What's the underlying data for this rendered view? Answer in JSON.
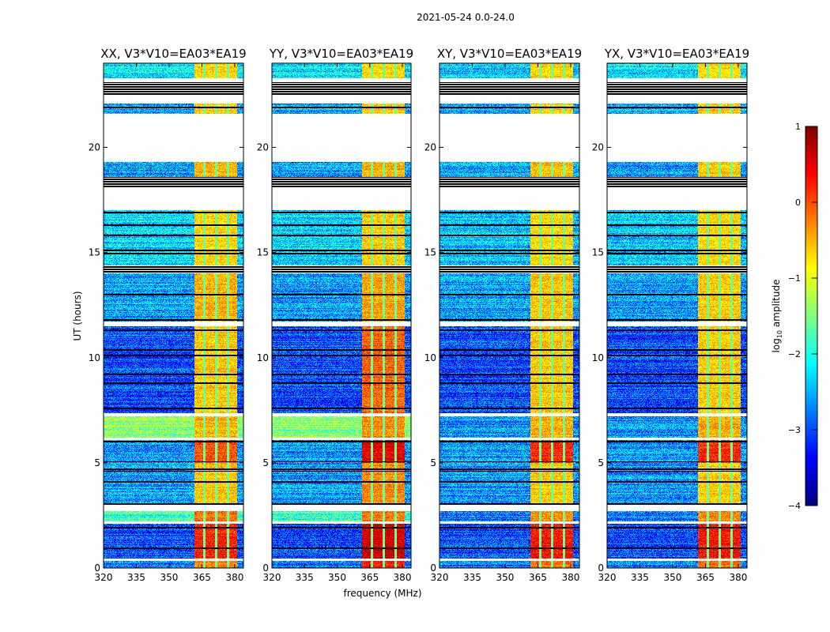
{
  "chart_data": {
    "type": "heatmap",
    "title": "2021-05-24 0.0-24.0",
    "xlabel": "frequency (MHz)",
    "ylabel": "UT (hours)",
    "xlim": [
      320,
      384
    ],
    "ylim": [
      0,
      24
    ],
    "xticks": [
      "320",
      "335",
      "350",
      "365",
      "380"
    ],
    "xtick_values": [
      320,
      335,
      350,
      365,
      380
    ],
    "yticks": [
      "0",
      "5",
      "10",
      "15",
      "20"
    ],
    "ytick_values": [
      0,
      5,
      10,
      15,
      20
    ],
    "panels": [
      {
        "title": "XX, V3*V10=EA03*EA19"
      },
      {
        "title": "YY, V3*V10=EA03*EA19"
      },
      {
        "title": "XY, V3*V10=EA03*EA19"
      },
      {
        "title": "YX, V3*V10=EA03*EA19"
      }
    ],
    "colorbar": {
      "label_main": "log",
      "label_sub": "10",
      "label_tail": " amplitude",
      "colormap": "jet",
      "range": [
        -4,
        1
      ],
      "ticks": [
        "1",
        "0",
        "−1",
        "−2",
        "−3",
        "−4"
      ],
      "tick_values": [
        1,
        0,
        -1,
        -2,
        -3,
        -4
      ]
    },
    "high_band_MHz": [
      361.5,
      381
    ],
    "band_gaps_MHz": [
      366,
      371.5,
      377
    ],
    "segments_hours": [
      {
        "from": 0,
        "to": 0.35,
        "type": "data",
        "low": [
          -2.8,
          -2.8,
          -2.8,
          -2.8
        ],
        "high": [
          -0.3,
          0.2,
          -0.2,
          -0.2
        ]
      },
      {
        "from": 0.35,
        "to": 0.45,
        "type": "blank"
      },
      {
        "from": 0.45,
        "to": 2.1,
        "type": "data",
        "low": [
          -3.0,
          -3.0,
          -3.0,
          -3.0
        ],
        "high": [
          0.2,
          0.6,
          0.3,
          0.3
        ]
      },
      {
        "from": 2.1,
        "to": 2.2,
        "type": "blank"
      },
      {
        "from": 2.2,
        "to": 2.7,
        "type": "data",
        "low": [
          -1.8,
          -1.8,
          -2.8,
          -2.8
        ],
        "high": [
          -0.2,
          -0.2,
          -0.3,
          -0.3
        ]
      },
      {
        "from": 2.7,
        "to": 3.0,
        "type": "blank"
      },
      {
        "from": 3.0,
        "to": 5.0,
        "type": "data",
        "low": [
          -2.6,
          -2.6,
          -2.6,
          -2.6
        ],
        "high": [
          -0.6,
          -0.3,
          -0.6,
          -0.6
        ]
      },
      {
        "from": 5.0,
        "to": 6.1,
        "type": "data",
        "low": [
          -2.6,
          -2.6,
          -2.6,
          -2.6
        ],
        "high": [
          0.0,
          0.5,
          0.2,
          0.2
        ]
      },
      {
        "from": 6.1,
        "to": 6.2,
        "type": "blank"
      },
      {
        "from": 6.2,
        "to": 7.2,
        "type": "data",
        "low": [
          -1.4,
          -1.4,
          -2.7,
          -2.7
        ],
        "high": [
          -0.5,
          -0.3,
          -0.5,
          -0.5
        ]
      },
      {
        "from": 7.2,
        "to": 7.35,
        "type": "blank"
      },
      {
        "from": 7.35,
        "to": 11.5,
        "type": "data",
        "low": [
          -3.0,
          -3.0,
          -3.0,
          -3.0
        ],
        "high": [
          -0.6,
          -0.1,
          -0.6,
          -0.6
        ]
      },
      {
        "from": 11.5,
        "to": 11.7,
        "type": "blank"
      },
      {
        "from": 11.7,
        "to": 14.0,
        "type": "data",
        "low": [
          -2.6,
          -2.6,
          -2.6,
          -2.6
        ],
        "high": [
          -0.5,
          -0.4,
          -0.6,
          -0.6
        ]
      },
      {
        "from": 14.0,
        "to": 14.4,
        "type": "flagged"
      },
      {
        "from": 14.4,
        "to": 17.0,
        "type": "data",
        "low": [
          -2.3,
          -2.3,
          -2.4,
          -2.4
        ],
        "high": [
          -0.7,
          -0.6,
          -0.7,
          -0.7
        ]
      },
      {
        "from": 17.0,
        "to": 18.1,
        "type": "blank"
      },
      {
        "from": 18.1,
        "to": 18.6,
        "type": "flagged"
      },
      {
        "from": 18.6,
        "to": 19.3,
        "type": "data",
        "low": [
          -2.6,
          -2.6,
          -2.6,
          -2.6
        ],
        "high": [
          -0.5,
          -0.5,
          -0.6,
          -0.6
        ]
      },
      {
        "from": 19.3,
        "to": 21.6,
        "type": "blank"
      },
      {
        "from": 21.6,
        "to": 22.1,
        "type": "data",
        "low": [
          -2.5,
          -2.5,
          -2.5,
          -2.5
        ],
        "high": [
          -0.6,
          -0.6,
          -0.6,
          -0.6
        ]
      },
      {
        "from": 22.1,
        "to": 22.5,
        "type": "blank"
      },
      {
        "from": 22.5,
        "to": 23.1,
        "type": "flagged"
      },
      {
        "from": 23.1,
        "to": 23.3,
        "type": "blank"
      },
      {
        "from": 23.3,
        "to": 24,
        "type": "data",
        "low": [
          -2.2,
          -2.2,
          -2.4,
          -2.2
        ],
        "high": [
          -0.7,
          -0.7,
          -0.7,
          -0.7
        ]
      }
    ],
    "flag_lines_hours": [
      0.95,
      1.9,
      2.85,
      3.05,
      4.1,
      4.6,
      4.7,
      5.05,
      6.0,
      7.6,
      8.8,
      9.2,
      10.1,
      10.35,
      11.3,
      11.8,
      13.0,
      14.95,
      15.1,
      15.8,
      16.3,
      16.9,
      17.1,
      21.9,
      22.2
    ]
  }
}
